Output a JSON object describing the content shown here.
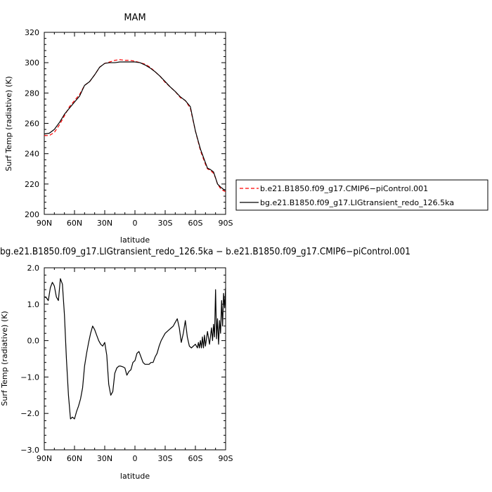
{
  "chart_data": [
    {
      "type": "line",
      "title": "MAM",
      "xlabel": "latitude",
      "ylabel": "Surf Temp (radiative) (K)",
      "xlim": [
        90,
        -90
      ],
      "ylim": [
        200,
        320
      ],
      "x_ticks": [
        "90N",
        "60N",
        "30N",
        "0",
        "30S",
        "60S",
        "90S"
      ],
      "y_ticks": [
        "200",
        "220",
        "240",
        "260",
        "280",
        "300",
        "320"
      ],
      "legend_position": "right",
      "series": [
        {
          "name": "b.e21.B1850.f09_g17.CMIP6−piControl.001",
          "color": "#ff0000",
          "style": "dashed",
          "x": [
            90,
            85,
            80,
            75,
            70,
            65,
            60,
            55,
            50,
            45,
            40,
            35,
            30,
            25,
            20,
            15,
            10,
            5,
            0,
            -5,
            -10,
            -15,
            -20,
            -25,
            -30,
            -35,
            -40,
            -45,
            -50,
            -55,
            -60,
            -65,
            -70,
            -72,
            -75,
            -78,
            -80,
            -82,
            -85,
            -88,
            -90
          ],
          "values": [
            252,
            252,
            254,
            259,
            265,
            271,
            275,
            279,
            285,
            287.5,
            292,
            297,
            299.5,
            300.5,
            301.5,
            302,
            301.5,
            301.5,
            301,
            300,
            299,
            297,
            294,
            291,
            287,
            284,
            281,
            277,
            275,
            270,
            255,
            242,
            233,
            230,
            229,
            227,
            224,
            220,
            217,
            215.5,
            215
          ]
        },
        {
          "name": "bg.e21.B1850.f09_g17.LIGtransient_redo_126.5ka",
          "color": "#000000",
          "style": "solid",
          "x": [
            90,
            85,
            80,
            75,
            70,
            65,
            60,
            55,
            50,
            45,
            40,
            35,
            30,
            25,
            20,
            15,
            10,
            5,
            0,
            -5,
            -10,
            -15,
            -20,
            -25,
            -30,
            -35,
            -40,
            -45,
            -50,
            -55,
            -60,
            -65,
            -70,
            -72,
            -75,
            -78,
            -80,
            -82,
            -85,
            -88,
            -90
          ],
          "values": [
            253,
            253.5,
            256,
            260.5,
            266,
            270,
            274,
            278,
            285,
            287.5,
            292,
            297,
            299.5,
            300,
            300,
            300.5,
            300.5,
            300.5,
            300.5,
            300,
            298.5,
            296.5,
            294,
            291,
            287.5,
            284,
            281,
            277.5,
            275,
            271,
            255,
            243,
            234,
            230.5,
            229.5,
            228,
            224,
            220,
            218,
            216.5,
            216
          ]
        }
      ]
    },
    {
      "type": "line",
      "title": "bg.e21.B1850.f09_g17.LIGtransient_redo_126.5ka − b.e21.B1850.f09_g17.CMIP6−piControl.001",
      "xlabel": "latitude",
      "ylabel": "Surf Temp (radiative) (K)",
      "xlim": [
        90,
        -90
      ],
      "ylim": [
        -3.0,
        2.0
      ],
      "x_ticks": [
        "90N",
        "60N",
        "30N",
        "0",
        "30S",
        "60S",
        "90S"
      ],
      "y_ticks": [
        "−3.0",
        "−2.0",
        "−1.0",
        "0.0",
        "1.0",
        "2.0"
      ],
      "series": [
        {
          "name": "",
          "color": "#000000",
          "style": "solid",
          "x": [
            90,
            88,
            86,
            84,
            82,
            80,
            78,
            76,
            74,
            72,
            70,
            68,
            66,
            64,
            62,
            60,
            58,
            56,
            54,
            52,
            50,
            48,
            46,
            44,
            42,
            40,
            38,
            36,
            34,
            32,
            30,
            28,
            26,
            24,
            22,
            20,
            18,
            16,
            14,
            12,
            10,
            8,
            6,
            4,
            2,
            0,
            -2,
            -4,
            -6,
            -8,
            -10,
            -12,
            -14,
            -16,
            -18,
            -20,
            -22,
            -24,
            -26,
            -28,
            -30,
            -32,
            -34,
            -36,
            -38,
            -40,
            -42,
            -44,
            -46,
            -48,
            -50,
            -52,
            -54,
            -56,
            -58,
            -60,
            -62,
            -63,
            -64,
            -65,
            -66,
            -67,
            -68,
            -69,
            -70,
            -72,
            -74,
            -76,
            -77,
            -78,
            -79,
            -80,
            -81,
            -82,
            -83,
            -84,
            -85,
            -86,
            -87,
            -88,
            -89,
            -90
          ],
          "values": [
            1.2,
            1.18,
            1.1,
            1.45,
            1.6,
            1.5,
            1.2,
            1.1,
            1.7,
            1.55,
            0.7,
            -0.5,
            -1.5,
            -2.15,
            -2.1,
            -2.15,
            -1.95,
            -1.8,
            -1.6,
            -1.3,
            -0.7,
            -0.35,
            -0.05,
            0.2,
            0.4,
            0.3,
            0.15,
            0.0,
            -0.1,
            -0.15,
            -0.05,
            -0.4,
            -1.2,
            -1.5,
            -1.4,
            -0.9,
            -0.75,
            -0.7,
            -0.7,
            -0.72,
            -0.75,
            -0.95,
            -0.85,
            -0.8,
            -0.6,
            -0.55,
            -0.35,
            -0.3,
            -0.45,
            -0.6,
            -0.65,
            -0.65,
            -0.65,
            -0.6,
            -0.6,
            -0.45,
            -0.35,
            -0.15,
            0.0,
            0.1,
            0.2,
            0.25,
            0.3,
            0.35,
            0.4,
            0.5,
            0.6,
            0.35,
            -0.05,
            0.2,
            0.55,
            0.1,
            -0.15,
            -0.2,
            -0.15,
            -0.1,
            -0.2,
            -0.05,
            -0.2,
            0.0,
            -0.2,
            0.1,
            -0.2,
            0.15,
            -0.15,
            0.25,
            -0.1,
            0.35,
            0.0,
            0.45,
            0.1,
            1.4,
            0.05,
            0.6,
            -0.1,
            0.55,
            0.2,
            1.1,
            0.4,
            1.3,
            0.9,
            1.45
          ]
        }
      ]
    }
  ]
}
